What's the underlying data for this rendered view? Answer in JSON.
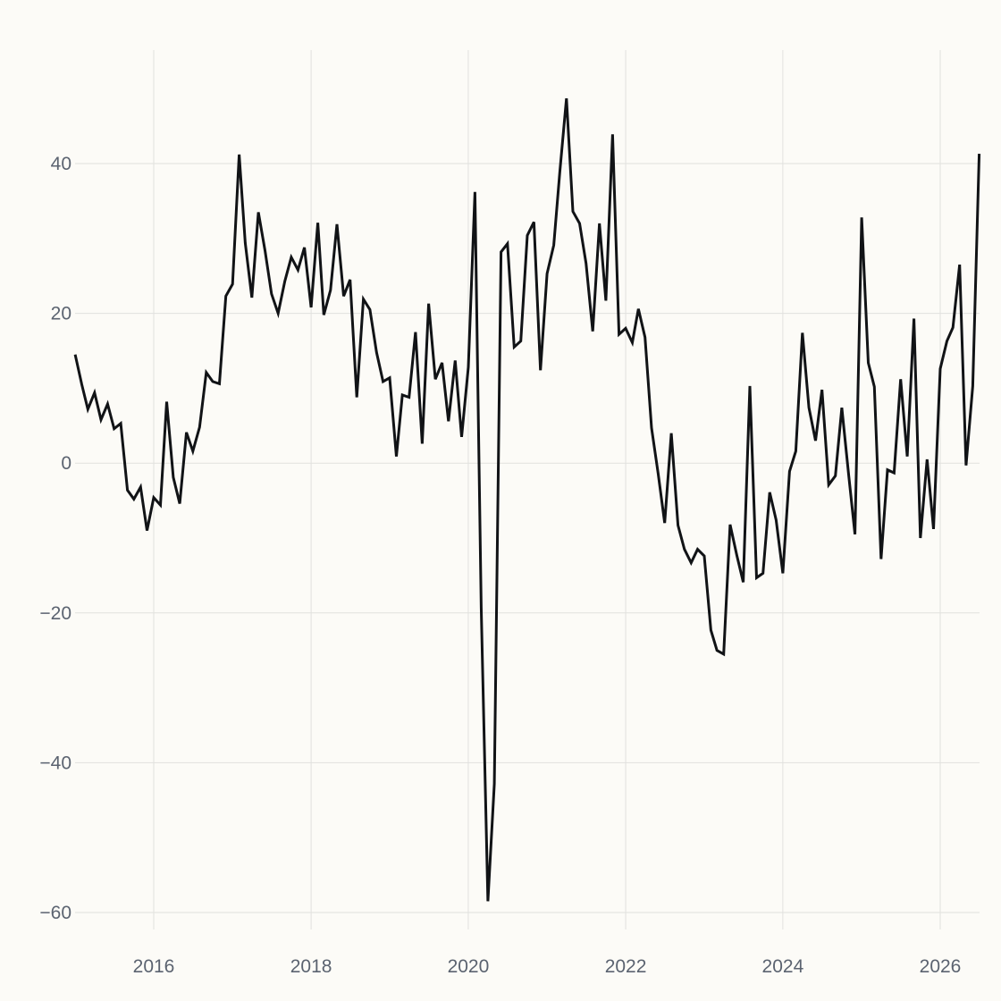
{
  "chart_data": {
    "type": "line",
    "title": "",
    "xlabel": "",
    "ylabel": "",
    "grid": true,
    "legend": "none",
    "xlim": [
      "2015-01-01",
      "2026-07-01"
    ],
    "ylim": [
      -60,
      55
    ],
    "x_ticks": [
      {
        "date": "2016-01-01",
        "label": "2016"
      },
      {
        "date": "2018-01-01",
        "label": "2018"
      },
      {
        "date": "2020-01-01",
        "label": "2020"
      },
      {
        "date": "2022-01-01",
        "label": "2022"
      },
      {
        "date": "2024-01-01",
        "label": "2024"
      },
      {
        "date": "2026-01-01",
        "label": "2026"
      }
    ],
    "y_ticks": [
      {
        "value": 40,
        "label": "40"
      },
      {
        "value": 20,
        "label": "20"
      },
      {
        "value": 0,
        "label": "0"
      },
      {
        "value": -20,
        "label": "−20"
      },
      {
        "value": -40,
        "label": "−40"
      },
      {
        "value": -60,
        "label": "−60"
      }
    ],
    "colors": {
      "line": "#111316",
      "grid": "#e1e1de",
      "tick_text": "#5b6370",
      "background": "#fcfbf7"
    },
    "series": [
      {
        "x": [
          "2015-01-01",
          "2015-02-01",
          "2015-03-01",
          "2015-04-01",
          "2015-05-01",
          "2015-06-01",
          "2015-07-01",
          "2015-08-01",
          "2015-09-01",
          "2015-10-01",
          "2015-11-01",
          "2015-12-01",
          "2016-01-01",
          "2016-02-01",
          "2016-03-01",
          "2016-04-01",
          "2016-05-01",
          "2016-06-01",
          "2016-07-01",
          "2016-08-01",
          "2016-09-01",
          "2016-10-01",
          "2016-11-01",
          "2016-12-01",
          "2017-01-01",
          "2017-02-01",
          "2017-03-01",
          "2017-04-01",
          "2017-05-01",
          "2017-06-01",
          "2017-07-01",
          "2017-08-01",
          "2017-09-01",
          "2017-10-01",
          "2017-11-01",
          "2017-12-01",
          "2018-01-01",
          "2018-02-01",
          "2018-03-01",
          "2018-04-01",
          "2018-05-01",
          "2018-06-01",
          "2018-07-01",
          "2018-08-01",
          "2018-09-01",
          "2018-10-01",
          "2018-11-01",
          "2018-12-01",
          "2019-01-01",
          "2019-02-01",
          "2019-03-01",
          "2019-04-01",
          "2019-05-01",
          "2019-06-01",
          "2019-07-01",
          "2019-08-01",
          "2019-09-01",
          "2019-10-01",
          "2019-11-01",
          "2019-12-01",
          "2020-01-01",
          "2020-02-01",
          "2020-03-01",
          "2020-04-01",
          "2020-05-01",
          "2020-06-01",
          "2020-07-01",
          "2020-08-01",
          "2020-09-01",
          "2020-10-01",
          "2020-11-01",
          "2020-12-01",
          "2021-01-01",
          "2021-02-01",
          "2021-03-01",
          "2021-04-01",
          "2021-05-01",
          "2021-06-01",
          "2021-07-01",
          "2021-08-01",
          "2021-09-01",
          "2021-10-01",
          "2021-11-01",
          "2021-12-01",
          "2022-01-01",
          "2022-02-01",
          "2022-03-01",
          "2022-04-01",
          "2022-05-01",
          "2022-06-01",
          "2022-07-01",
          "2022-08-01",
          "2022-09-01",
          "2022-10-01",
          "2022-11-01",
          "2022-12-01",
          "2023-01-01",
          "2023-02-01",
          "2023-03-01",
          "2023-04-01",
          "2023-05-01",
          "2023-06-01",
          "2023-07-01",
          "2023-08-01",
          "2023-09-01",
          "2023-10-01",
          "2023-11-01",
          "2023-12-01",
          "2024-01-01",
          "2024-02-01",
          "2024-03-01",
          "2024-04-01",
          "2024-05-01",
          "2024-06-01",
          "2024-07-01",
          "2024-08-01",
          "2024-09-01",
          "2024-10-01",
          "2024-11-01",
          "2024-12-01",
          "2025-01-01",
          "2025-02-01",
          "2025-03-01",
          "2025-04-01",
          "2025-05-01",
          "2025-06-01",
          "2025-07-01",
          "2025-08-01",
          "2025-09-01",
          "2025-10-01",
          "2025-11-01",
          "2025-12-01",
          "2026-01-01",
          "2026-02-01",
          "2026-03-01",
          "2026-04-01",
          "2026-05-01",
          "2026-06-01",
          "2026-07-01"
        ],
        "y": [
          14.5,
          10.5,
          7.2,
          9.4,
          5.8,
          7.9,
          4.6,
          5.3,
          -3.6,
          -4.8,
          -3.2,
          -9.0,
          -4.6,
          -5.6,
          8.2,
          -1.9,
          -5.4,
          4.1,
          1.6,
          4.8,
          12.1,
          10.9,
          10.6,
          22.3,
          23.9,
          41.2,
          29.4,
          22.1,
          33.5,
          28.4,
          22.6,
          20.0,
          24.3,
          27.5,
          25.8,
          28.8,
          20.8,
          32.1,
          19.8,
          23.1,
          31.9,
          22.3,
          24.5,
          8.8,
          21.9,
          20.5,
          14.8,
          10.9,
          11.4,
          0.9,
          9.1,
          8.8,
          17.5,
          2.6,
          21.3,
          11.2,
          13.4,
          5.6,
          13.7,
          3.5,
          12.8,
          36.2,
          -19.2,
          -58.5,
          -42.8,
          28.2,
          29.3,
          15.5,
          16.3,
          30.4,
          32.2,
          12.4,
          25.3,
          29.1,
          38.8,
          48.7,
          33.6,
          32.0,
          26.7,
          17.6,
          32.0,
          21.7,
          43.9,
          17.2,
          18.0,
          16.1,
          20.6,
          16.8,
          4.7,
          -1.4,
          -8.0,
          4.0,
          -8.3,
          -11.5,
          -13.3,
          -11.5,
          -12.4,
          -22.3,
          -25.0,
          -25.5,
          -8.2,
          -12.3,
          -15.9,
          10.3,
          -15.3,
          -14.7,
          -3.9,
          -7.6,
          -14.7,
          -1.1,
          1.6,
          17.4,
          7.4,
          3.0,
          9.8,
          -2.9,
          -1.7,
          7.4,
          -1.4,
          -9.5,
          32.8,
          13.4,
          10.2,
          -12.8,
          -0.9,
          -1.3,
          11.2,
          0.9,
          19.3,
          -10.0,
          0.5,
          -8.8,
          12.6,
          16.3,
          18.1,
          26.5,
          -0.3,
          10.3,
          41.3
        ]
      }
    ]
  }
}
